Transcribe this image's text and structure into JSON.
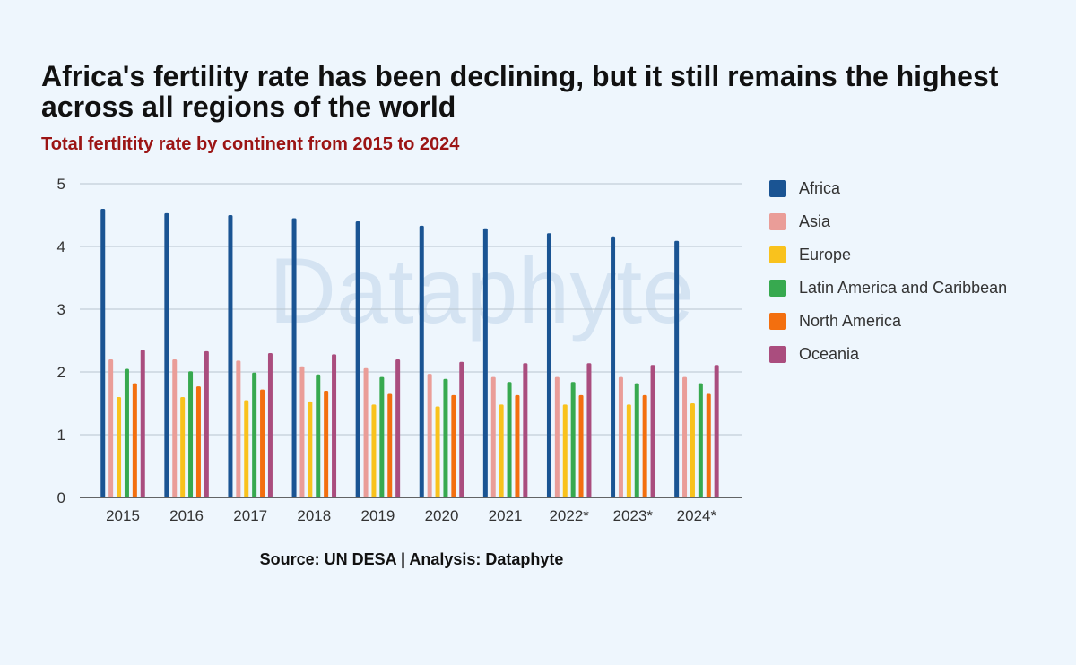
{
  "header": {
    "title": "Africa's fertility rate has been declining, but it still remains the highest across all regions of the world",
    "subtitle": "Total fertlitity rate by continent from 2015 to 2024"
  },
  "watermark": "Dataphyte",
  "source": "Source: UN DESA | Analysis: Dataphyte",
  "colors": {
    "background": "#eef6fd",
    "title": "#111111",
    "subtitle": "#9b1414",
    "gridline": "#b8c4cf",
    "axis": "#333333"
  },
  "chart_data": {
    "type": "bar",
    "title": "Africa's fertility rate has been declining, but it still remains the highest across all regions of the world",
    "subtitle": "Total fertlitity rate by continent from 2015 to 2024",
    "xlabel": "",
    "ylabel": "",
    "ylim": [
      0,
      5
    ],
    "yticks": [
      0,
      1,
      2,
      3,
      4,
      5
    ],
    "grid": true,
    "legend_position": "right",
    "categories": [
      "2015",
      "2016",
      "2017",
      "2018",
      "2019",
      "2020",
      "2021",
      "2022*",
      "2023*",
      "2024*"
    ],
    "series": [
      {
        "name": "Africa",
        "color": "#1a5493",
        "values": [
          4.6,
          4.53,
          4.5,
          4.45,
          4.4,
          4.33,
          4.29,
          4.21,
          4.16,
          4.09
        ]
      },
      {
        "name": "Asia",
        "color": "#ea9d98",
        "values": [
          2.2,
          2.2,
          2.18,
          2.09,
          2.06,
          1.97,
          1.92,
          1.92,
          1.92,
          1.92
        ]
      },
      {
        "name": "Europe",
        "color": "#f9c21d",
        "values": [
          1.6,
          1.6,
          1.55,
          1.53,
          1.48,
          1.45,
          1.48,
          1.48,
          1.48,
          1.5
        ]
      },
      {
        "name": "Latin America and Caribbean",
        "color": "#37a94f",
        "values": [
          2.05,
          2.01,
          1.99,
          1.96,
          1.92,
          1.89,
          1.84,
          1.84,
          1.82,
          1.82
        ]
      },
      {
        "name": "North America",
        "color": "#f36f0f",
        "values": [
          1.82,
          1.77,
          1.72,
          1.7,
          1.65,
          1.63,
          1.63,
          1.63,
          1.63,
          1.65
        ]
      },
      {
        "name": "Oceania",
        "color": "#aa4d7e",
        "values": [
          2.35,
          2.33,
          2.3,
          2.28,
          2.2,
          2.16,
          2.14,
          2.14,
          2.11,
          2.11
        ]
      }
    ]
  }
}
